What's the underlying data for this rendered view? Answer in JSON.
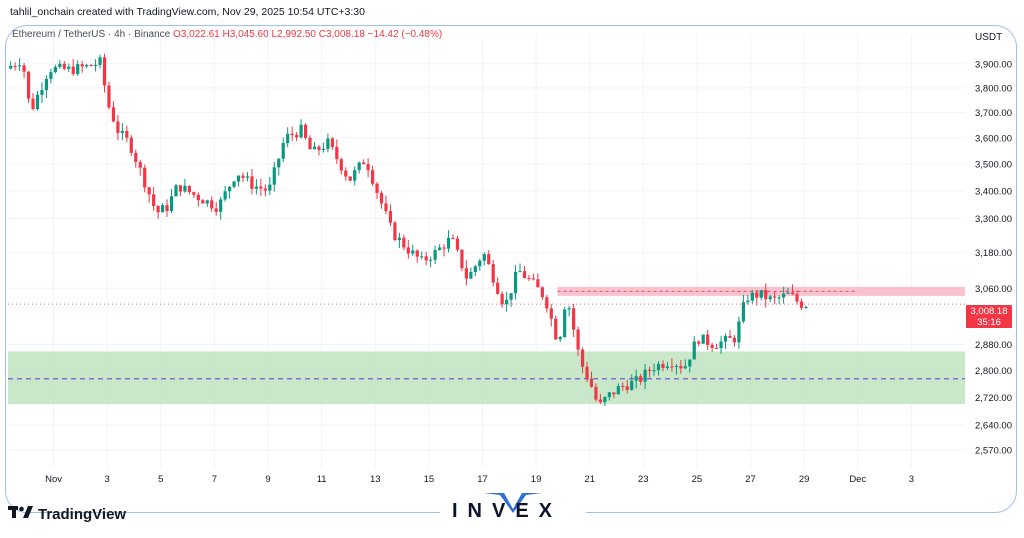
{
  "header_note": "tahlil_onchain created with TradingView.com, Nov 29, 2025 10:54 UTC+3:30",
  "legend": {
    "symbol": "Ethereum / TetherUS · 4h · Binance",
    "open": "O3,022.61",
    "high": "H3,045.60",
    "low": "L2,992.50",
    "close": "C3,008.18",
    "change": "−14.42 (−0.48%)"
  },
  "currency": "USDT",
  "last_price": {
    "price": "3,008.18",
    "countdown": "35:16"
  },
  "brand": {
    "text": "INVEX",
    "logo_text": "TradingView"
  },
  "colors": {
    "up": "#089981",
    "down": "#f23645",
    "support_zone": "#bfe3c0",
    "resistance_zone": "#f7b8c6",
    "support_line": "#7b57d1"
  },
  "chart_data": {
    "type": "candlestick",
    "interval": "4h",
    "ylim": [
      2520,
      3980
    ],
    "y_scale": "log",
    "y_ticks": [
      "3,900.00",
      "3,800.00",
      "3,700.00",
      "3,600.00",
      "3,500.00",
      "3,400.00",
      "3,300.00",
      "3,180.00",
      "3,060.00",
      "2,880.00",
      "2,800.00",
      "2,720.00",
      "2,640.00",
      "2,570.00"
    ],
    "y_tick_values": [
      3900,
      3800,
      3700,
      3600,
      3500,
      3400,
      3300,
      3180,
      3060,
      2880,
      2800,
      2720,
      2640,
      2570
    ],
    "x_ticks": [
      "Nov",
      "3",
      "5",
      "7",
      "9",
      "11",
      "13",
      "15",
      "17",
      "19",
      "21",
      "23",
      "25",
      "27",
      "29",
      "Dec",
      "3"
    ],
    "x_tick_days": [
      1,
      3,
      5,
      7,
      9,
      11,
      13,
      15,
      17,
      19,
      21,
      23,
      25,
      27,
      29,
      31,
      33
    ],
    "day_range": [
      -0.7,
      35.0
    ],
    "price_anchors": [
      [
        -0.6,
        3880
      ],
      [
        0.0,
        3920
      ],
      [
        0.3,
        3700
      ],
      [
        1.0,
        3880
      ],
      [
        1.8,
        3875
      ],
      [
        2.5,
        3890
      ],
      [
        3.0,
        3910
      ],
      [
        3.1,
        3760
      ],
      [
        3.6,
        3620
      ],
      [
        4.0,
        3580
      ],
      [
        4.5,
        3450
      ],
      [
        5.0,
        3320
      ],
      [
        5.4,
        3340
      ],
      [
        5.8,
        3420
      ],
      [
        6.5,
        3380
      ],
      [
        7.3,
        3340
      ],
      [
        8.0,
        3470
      ],
      [
        8.6,
        3420
      ],
      [
        9.2,
        3400
      ],
      [
        9.8,
        3600
      ],
      [
        10.4,
        3630
      ],
      [
        10.8,
        3540
      ],
      [
        11.4,
        3580
      ],
      [
        12.2,
        3440
      ],
      [
        12.8,
        3520
      ],
      [
        13.3,
        3380
      ],
      [
        13.8,
        3250
      ],
      [
        14.4,
        3190
      ],
      [
        14.9,
        3150
      ],
      [
        15.4,
        3180
      ],
      [
        16.0,
        3230
      ],
      [
        16.6,
        3090
      ],
      [
        17.2,
        3180
      ],
      [
        17.6,
        3090
      ],
      [
        18.0,
        3000
      ],
      [
        18.5,
        3120
      ],
      [
        19.0,
        3080
      ],
      [
        19.5,
        3030
      ],
      [
        20.0,
        2880
      ],
      [
        20.3,
        3040
      ],
      [
        20.8,
        2830
      ],
      [
        21.2,
        2760
      ],
      [
        21.5,
        2690
      ],
      [
        21.8,
        2720
      ],
      [
        22.3,
        2750
      ],
      [
        23.0,
        2770
      ],
      [
        23.5,
        2810
      ],
      [
        24.2,
        2830
      ],
      [
        24.7,
        2810
      ],
      [
        25.2,
        2900
      ],
      [
        25.8,
        2880
      ],
      [
        26.6,
        2900
      ],
      [
        27.0,
        3030
      ],
      [
        27.5,
        3040
      ],
      [
        28.0,
        3020
      ],
      [
        28.6,
        3040
      ],
      [
        29.0,
        3010
      ],
      [
        29.1,
        3008.18
      ]
    ],
    "zones": [
      {
        "name": "resistance",
        "from": 3035,
        "to": 3065,
        "start_day": 19.8,
        "color": "#f7b8c6"
      },
      {
        "name": "support",
        "from": 2700,
        "to": 2858,
        "start_day": -0.7,
        "color": "#bfe3c0",
        "midline": 2775
      }
    ],
    "last_price_line": 3008.18
  }
}
